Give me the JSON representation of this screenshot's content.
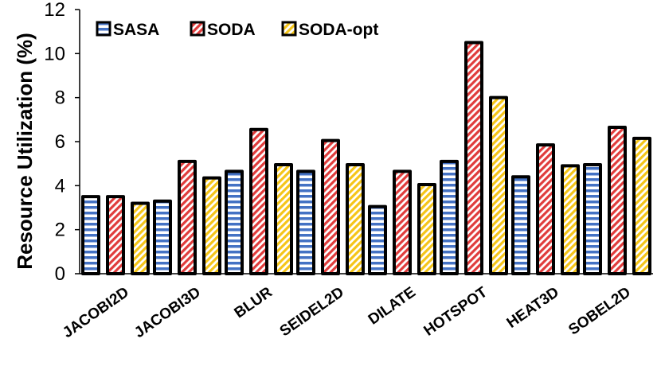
{
  "chart_data": {
    "type": "bar",
    "title": "",
    "xlabel": "",
    "ylabel": "Resource Utilization (%)",
    "ylim": [
      0,
      12
    ],
    "yticks": [
      0,
      2,
      4,
      6,
      8,
      10,
      12
    ],
    "grid": false,
    "legend_position": "top-left",
    "categories": [
      "JACOBI2D",
      "JACOBI3D",
      "BLUR",
      "SEIDEL2D",
      "DILATE",
      "HOTSPOT",
      "HEAT3D",
      "SOBEL2D"
    ],
    "series": [
      {
        "name": "SASA",
        "color": "#4472c4",
        "pattern": "horizontal-stripes",
        "values": [
          3.5,
          3.3,
          4.65,
          4.65,
          3.05,
          5.1,
          4.4,
          4.95
        ]
      },
      {
        "name": "SODA",
        "color": "#e03c3c",
        "pattern": "diagonal-stripes",
        "values": [
          3.5,
          5.1,
          6.55,
          6.05,
          4.65,
          10.5,
          5.85,
          6.65
        ]
      },
      {
        "name": "SODA-opt",
        "color": "#f5c518",
        "pattern": "diagonal-stripes",
        "values": [
          3.2,
          4.35,
          4.95,
          4.95,
          4.05,
          8.0,
          4.9,
          6.15
        ]
      }
    ]
  }
}
